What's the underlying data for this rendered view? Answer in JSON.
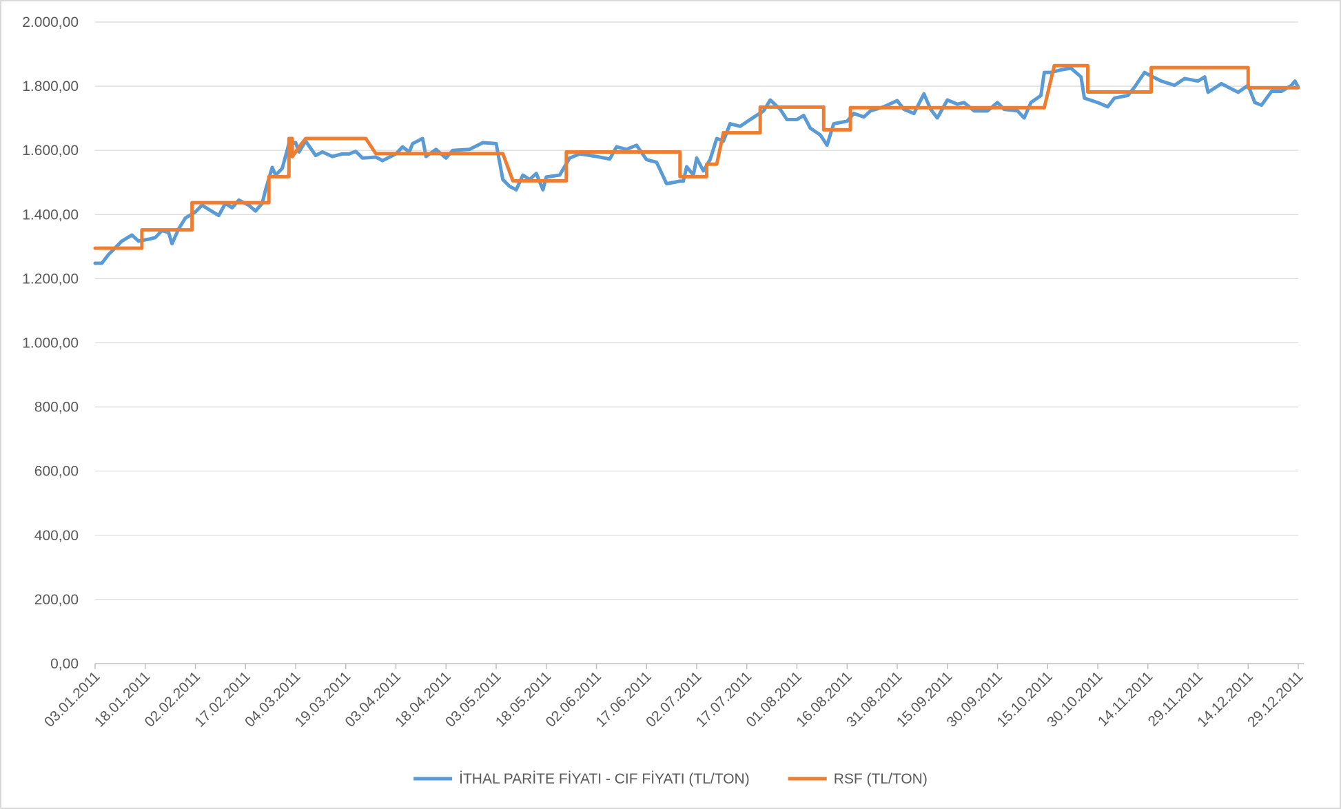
{
  "chart_data": {
    "type": "line",
    "xlim": [
      "03.01.2011",
      "29.12.2011"
    ],
    "xticks": [
      "03.01.2011",
      "18.01.2011",
      "02.02.2011",
      "17.02.2011",
      "04.03.2011",
      "19.03.2011",
      "03.04.2011",
      "18.04.2011",
      "03.05.2011",
      "18.05.2011",
      "02.06.2011",
      "17.06.2011",
      "02.07.2011",
      "17.07.2011",
      "01.08.2011",
      "16.08.2011",
      "31.08.2011",
      "15.09.2011",
      "30.09.2011",
      "15.10.2011",
      "30.10.2011",
      "14.11.2011",
      "29.11.2011",
      "14.12.2011",
      "29.12.2011"
    ],
    "ylim": [
      0,
      2000
    ],
    "yticks": [
      {
        "value": 0,
        "label": "0,00"
      },
      {
        "value": 200,
        "label": "200,00"
      },
      {
        "value": 400,
        "label": "400,00"
      },
      {
        "value": 600,
        "label": "600,00"
      },
      {
        "value": 800,
        "label": "800,00"
      },
      {
        "value": 1000,
        "label": "1.000,00"
      },
      {
        "value": 1200,
        "label": "1.200,00"
      },
      {
        "value": 1400,
        "label": "1.400,00"
      },
      {
        "value": 1600,
        "label": "1.600,00"
      },
      {
        "value": 1800,
        "label": "1.800,00"
      },
      {
        "value": 2000,
        "label": "2.000,00"
      }
    ],
    "grid": true,
    "legend": "bottom",
    "series": [
      {
        "name": "İTHAL PARİTE FİYATI - CIF FİYATI (TL/TON)",
        "color": "#5b9bd5",
        "x": [
          "03.01.2011",
          "05.01.2011",
          "07.01.2011",
          "11.01.2011",
          "14.01.2011",
          "16.01.2011",
          "19.01.2011",
          "21.01.2011",
          "23.01.2011",
          "25.01.2011",
          "26.01.2011",
          "28.01.2011",
          "30.01.2011",
          "02.02.2011",
          "04.02.2011",
          "06.02.2011",
          "09.02.2011",
          "11.02.2011",
          "13.02.2011",
          "15.02.2011",
          "18.02.2011",
          "20.02.2011",
          "22.02.2011",
          "23.02.2011",
          "25.02.2011",
          "26.02.2011",
          "28.02.2011",
          "02.03.2011",
          "04.03.2011",
          "05.03.2011",
          "07.03.2011",
          "10.03.2011",
          "12.03.2011",
          "15.03.2011",
          "18.03.2011",
          "20.03.2011",
          "22.03.2011",
          "24.03.2011",
          "28.03.2011",
          "30.03.2011",
          "03.04.2011",
          "05.04.2011",
          "07.04.2011",
          "08.04.2011",
          "11.04.2011",
          "12.04.2011",
          "15.04.2011",
          "18.04.2011",
          "20.04.2011",
          "25.04.2011",
          "29.04.2011",
          "03.05.2011",
          "05.05.2011",
          "07.05.2011",
          "09.05.2011",
          "11.05.2011",
          "13.05.2011",
          "15.05.2011",
          "17.05.2011",
          "18.05.2011",
          "22.05.2011",
          "25.05.2011",
          "28.05.2011",
          "02.06.2011",
          "06.06.2011",
          "08.06.2011",
          "11.06.2011",
          "14.06.2011",
          "17.06.2011",
          "20.06.2011",
          "23.06.2011",
          "27.06.2011",
          "28.06.2011",
          "29.06.2011",
          "01.07.2011",
          "02.07.2011",
          "04.07.2011",
          "06.07.2011",
          "08.07.2011",
          "10.07.2011",
          "12.07.2011",
          "15.07.2011",
          "18.07.2011",
          "22.07.2011",
          "24.07.2011",
          "27.07.2011",
          "29.07.2011",
          "01.08.2011",
          "03.08.2011",
          "05.08.2011",
          "08.08.2011",
          "10.08.2011",
          "12.08.2011",
          "16.08.2011",
          "18.08.2011",
          "21.08.2011",
          "23.08.2011",
          "27.08.2011",
          "31.08.2011",
          "02.09.2011",
          "05.09.2011",
          "08.09.2011",
          "10.09.2011",
          "12.09.2011",
          "15.09.2011",
          "18.09.2011",
          "20.09.2011",
          "23.09.2011",
          "27.09.2011",
          "30.09.2011",
          "02.10.2011",
          "06.10.2011",
          "08.10.2011",
          "10.10.2011",
          "13.10.2011",
          "14.10.2011",
          "16.10.2011",
          "19.10.2011",
          "22.10.2011",
          "25.10.2011",
          "26.10.2011",
          "30.10.2011",
          "02.11.2011",
          "04.11.2011",
          "08.11.2011",
          "10.11.2011",
          "13.11.2011",
          "14.11.2011",
          "18.11.2011",
          "22.11.2011",
          "25.11.2011",
          "29.11.2011",
          "01.12.2011",
          "02.12.2011",
          "06.12.2011",
          "11.12.2011",
          "14.12.2011",
          "16.12.2011",
          "18.12.2011",
          "21.12.2011",
          "24.12.2011",
          "27.12.2011",
          "28.12.2011",
          "29.12.2011"
        ],
        "values": [
          1248,
          1248,
          1275,
          1317,
          1336,
          1317,
          1323,
          1328,
          1350,
          1344,
          1309,
          1355,
          1389,
          1408,
          1429,
          1416,
          1397,
          1435,
          1421,
          1445,
          1429,
          1411,
          1435,
          1477,
          1547,
          1523,
          1544,
          1621,
          1624,
          1595,
          1629,
          1584,
          1595,
          1581,
          1589,
          1589,
          1597,
          1576,
          1579,
          1568,
          1589,
          1611,
          1595,
          1621,
          1637,
          1581,
          1603,
          1576,
          1600,
          1603,
          1624,
          1621,
          1509,
          1488,
          1477,
          1523,
          1509,
          1528,
          1477,
          1517,
          1523,
          1576,
          1589,
          1581,
          1573,
          1611,
          1603,
          1616,
          1571,
          1563,
          1496,
          1504,
          1504,
          1549,
          1523,
          1576,
          1536,
          1571,
          1637,
          1629,
          1683,
          1675,
          1696,
          1723,
          1757,
          1728,
          1696,
          1696,
          1709,
          1669,
          1648,
          1616,
          1683,
          1691,
          1715,
          1704,
          1723,
          1736,
          1755,
          1728,
          1715,
          1776,
          1728,
          1701,
          1757,
          1744,
          1749,
          1723,
          1723,
          1749,
          1728,
          1723,
          1701,
          1749,
          1771,
          1843,
          1843,
          1851,
          1856,
          1829,
          1763,
          1749,
          1736,
          1763,
          1771,
          1797,
          1843,
          1837,
          1816,
          1803,
          1824,
          1816,
          1829,
          1781,
          1808,
          1781,
          1803,
          1749,
          1741,
          1784,
          1784,
          1803,
          1816,
          1797
        ]
      },
      {
        "name": "RSF (TL/TON)",
        "color": "#ed7d31",
        "x": [
          "03.01.2011",
          "17.01.2011",
          "17.01.2011",
          "01.02.2011",
          "01.02.2011",
          "24.02.2011",
          "24.02.2011",
          "02.03.2011",
          "02.03.2011",
          "03.03.2011",
          "03.03.2011",
          "05.03.2011",
          "07.03.2011",
          "25.03.2011",
          "28.03.2011",
          "05.05.2011",
          "08.05.2011",
          "24.05.2011",
          "24.05.2011",
          "27.06.2011",
          "27.06.2011",
          "05.07.2011",
          "05.07.2011",
          "08.07.2011",
          "10.07.2011",
          "21.07.2011",
          "21.07.2011",
          "09.08.2011",
          "09.08.2011",
          "17.08.2011",
          "17.08.2011",
          "14.10.2011",
          "17.10.2011",
          "27.10.2011",
          "27.10.2011",
          "15.11.2011",
          "15.11.2011",
          "14.12.2011",
          "14.12.2011",
          "29.12.2011"
        ],
        "values": [
          1295,
          1295,
          1352,
          1352,
          1437,
          1437,
          1518,
          1518,
          1637,
          1637,
          1580,
          1610,
          1637,
          1637,
          1590,
          1590,
          1505,
          1505,
          1595,
          1595,
          1518,
          1518,
          1557,
          1557,
          1655,
          1655,
          1735,
          1735,
          1664,
          1664,
          1733,
          1733,
          1864,
          1864,
          1782,
          1782,
          1858,
          1858,
          1795,
          1795
        ]
      }
    ]
  }
}
